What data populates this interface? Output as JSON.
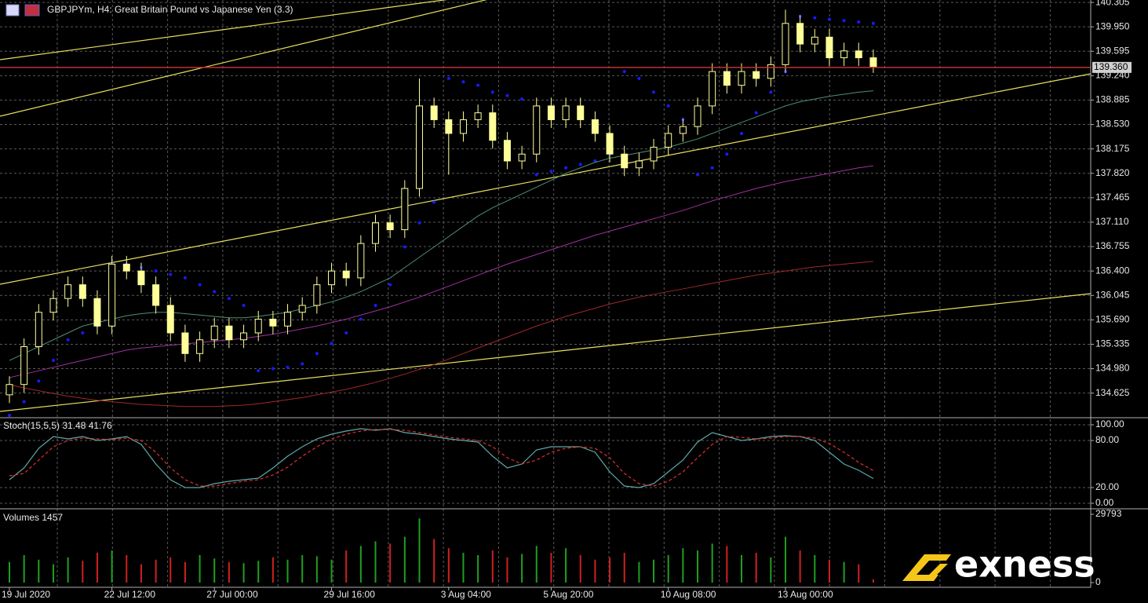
{
  "chart_data": [
    {
      "type": "candlestick",
      "title": "GBPJPYm, H4:  Great Britain Pound vs Japanese Yen (3.3)",
      "categories": [
        "19 Jul 2020",
        null,
        null,
        null,
        null,
        null,
        null,
        "22 Jul 12:00",
        null,
        null,
        null,
        null,
        null,
        null,
        "27 Jul 00:00",
        null,
        null,
        null,
        null,
        null,
        null,
        null,
        "29 Jul 16:00",
        null,
        null,
        null,
        null,
        null,
        null,
        null,
        "3 Aug 04:00",
        null,
        null,
        null,
        null,
        null,
        null,
        "5 Aug 20:00",
        null,
        null,
        null,
        null,
        null,
        null,
        null,
        "10 Aug 08:00",
        null,
        null,
        null,
        null,
        null,
        null,
        null,
        "13 Aug 00:00",
        null,
        null,
        null,
        null,
        null,
        null
      ],
      "open": [
        134.6,
        134.75,
        135.3,
        135.8,
        136.0,
        136.2,
        136.0,
        135.6,
        136.5,
        136.4,
        136.2,
        135.9,
        135.5,
        135.2,
        135.4,
        135.6,
        135.4,
        135.5,
        135.7,
        135.6,
        135.8,
        135.9,
        136.2,
        136.4,
        136.3,
        136.8,
        137.1,
        137.0,
        137.6,
        138.8,
        138.6,
        138.4,
        138.6,
        138.7,
        138.3,
        138.0,
        138.1,
        138.8,
        138.6,
        138.8,
        138.6,
        138.4,
        138.1,
        137.9,
        138.0,
        138.2,
        138.4,
        138.5,
        138.8,
        139.3,
        139.1,
        139.3,
        139.2,
        139.4,
        140.0,
        139.7,
        139.8,
        139.5,
        139.6,
        139.5
      ],
      "high": [
        134.87,
        135.42,
        135.92,
        136.12,
        136.32,
        136.32,
        136.12,
        136.62,
        136.62,
        136.52,
        136.32,
        136.02,
        135.62,
        135.52,
        135.72,
        135.72,
        135.62,
        135.82,
        135.82,
        135.92,
        136.02,
        136.32,
        136.52,
        136.52,
        136.92,
        137.22,
        137.22,
        137.72,
        139.2,
        138.92,
        138.72,
        138.72,
        138.82,
        138.82,
        138.42,
        138.22,
        138.92,
        138.92,
        138.92,
        138.92,
        138.72,
        138.52,
        138.22,
        138.12,
        138.32,
        138.52,
        138.62,
        138.92,
        139.42,
        139.42,
        139.42,
        139.42,
        139.52,
        140.2,
        140.12,
        139.92,
        139.92,
        139.72,
        139.72,
        139.62
      ],
      "low": [
        134.48,
        134.63,
        135.18,
        135.68,
        135.88,
        135.88,
        135.48,
        135.48,
        136.28,
        136.08,
        135.78,
        135.38,
        135.08,
        135.08,
        135.28,
        135.28,
        135.28,
        135.38,
        135.48,
        135.48,
        135.68,
        135.78,
        136.08,
        136.18,
        136.18,
        136.68,
        136.88,
        136.88,
        137.48,
        138.48,
        137.8,
        138.28,
        138.48,
        138.18,
        137.88,
        137.88,
        137.98,
        138.48,
        138.48,
        138.48,
        138.28,
        137.98,
        137.78,
        137.78,
        137.88,
        138.08,
        138.28,
        138.38,
        138.68,
        138.98,
        138.98,
        139.08,
        139.08,
        139.28,
        139.58,
        139.58,
        139.38,
        139.38,
        139.38,
        139.28
      ],
      "close": [
        134.75,
        135.3,
        135.8,
        136.0,
        136.2,
        136.0,
        135.6,
        136.5,
        136.4,
        136.2,
        135.9,
        135.5,
        135.2,
        135.4,
        135.6,
        135.4,
        135.5,
        135.7,
        135.6,
        135.8,
        135.9,
        136.2,
        136.4,
        136.3,
        136.8,
        137.1,
        137.0,
        137.6,
        138.8,
        138.6,
        138.4,
        138.6,
        138.7,
        138.3,
        138.0,
        138.1,
        138.8,
        138.6,
        138.8,
        138.6,
        138.4,
        138.1,
        137.9,
        138.0,
        138.2,
        138.4,
        138.5,
        138.8,
        139.3,
        139.1,
        139.3,
        139.2,
        139.4,
        140.0,
        139.7,
        139.8,
        139.5,
        139.6,
        139.5,
        139.36
      ],
      "up_color": "#000000",
      "down_color": "#ffff99",
      "wick_color": "#ffff99",
      "overlays": [
        {
          "style": "dots",
          "color": "#1a1aff",
          "values": [
            134.3,
            134.5,
            134.8,
            135.1,
            135.4,
            135.5,
            135.6,
            136.5,
            136.5,
            136.45,
            136.4,
            136.35,
            136.3,
            136.2,
            136.1,
            136.0,
            135.9,
            134.95,
            134.98,
            135.0,
            135.05,
            135.2,
            135.35,
            135.5,
            135.7,
            135.9,
            136.2,
            136.75,
            137.1,
            137.4,
            139.2,
            139.15,
            139.1,
            139.0,
            138.95,
            138.9,
            137.8,
            137.85,
            137.9,
            137.95,
            138.0,
            138.1,
            139.3,
            139.2,
            139.0,
            138.8,
            138.6,
            137.8,
            137.9,
            138.1,
            138.4,
            138.7,
            139.0,
            139.3,
            140.1,
            140.08,
            140.06,
            140.04,
            140.02,
            140.0
          ]
        },
        {
          "style": "line",
          "color": "#a02828",
          "values": [
            134.75,
            134.7,
            134.66,
            134.62,
            134.58,
            134.55,
            134.52,
            134.5,
            134.48,
            134.46,
            134.45,
            134.44,
            134.43,
            134.43,
            134.43,
            134.44,
            134.45,
            134.47,
            134.5,
            134.53,
            134.56,
            134.6,
            134.64,
            134.68,
            134.73,
            134.78,
            134.84,
            134.9,
            134.97,
            135.04,
            135.12,
            135.2,
            135.28,
            135.36,
            135.44,
            135.52,
            135.6,
            135.67,
            135.74,
            135.8,
            135.86,
            135.92,
            135.97,
            136.02,
            136.06,
            136.1,
            136.14,
            136.18,
            136.22,
            136.26,
            136.3,
            136.34,
            136.37,
            136.4,
            136.43,
            136.46,
            136.48,
            136.5,
            136.52,
            136.54
          ]
        },
        {
          "style": "line",
          "color": "#a030a0",
          "values": [
            134.85,
            134.9,
            134.95,
            135.0,
            135.05,
            135.1,
            135.15,
            135.2,
            135.25,
            135.28,
            135.3,
            135.32,
            135.34,
            135.36,
            135.38,
            135.4,
            135.42,
            135.45,
            135.48,
            135.52,
            135.56,
            135.6,
            135.65,
            135.7,
            135.76,
            135.82,
            135.88,
            135.95,
            136.02,
            136.1,
            136.18,
            136.26,
            136.34,
            136.42,
            136.5,
            136.57,
            136.64,
            136.71,
            136.78,
            136.85,
            136.92,
            136.98,
            137.04,
            137.1,
            137.16,
            137.22,
            137.28,
            137.35,
            137.42,
            137.48,
            137.54,
            137.6,
            137.65,
            137.7,
            137.74,
            137.78,
            137.82,
            137.86,
            137.9,
            137.93
          ]
        },
        {
          "style": "line",
          "color": "#4f8f6f",
          "values": [
            135.1,
            135.2,
            135.3,
            135.4,
            135.5,
            135.6,
            135.65,
            135.7,
            135.75,
            135.78,
            135.8,
            135.8,
            135.78,
            135.76,
            135.74,
            135.72,
            135.72,
            135.74,
            135.77,
            135.8,
            135.85,
            135.9,
            135.95,
            136.02,
            136.1,
            136.2,
            136.3,
            136.45,
            136.6,
            136.75,
            136.9,
            137.05,
            137.2,
            137.32,
            137.42,
            137.52,
            137.62,
            137.72,
            137.82,
            137.9,
            137.98,
            138.04,
            138.08,
            138.12,
            138.16,
            138.2,
            138.26,
            138.32,
            138.4,
            138.48,
            138.56,
            138.64,
            138.72,
            138.8,
            138.86,
            138.9,
            138.94,
            138.97,
            139.0,
            139.02
          ]
        }
      ],
      "price_line": {
        "value": 139.36,
        "label": "139.360",
        "color": "#c03030"
      },
      "ylim": [
        134.29,
        140.34
      ],
      "yticks": [
        140.305,
        {
          "value": 139.95,
          "label": "139.950"
        },
        139.595,
        {
          "value": 139.24,
          "label": "139.240"
        },
        138.885,
        {
          "value": 138.53,
          "label": "138.530"
        },
        138.175,
        {
          "value": 137.82,
          "label": "137.820"
        },
        137.465,
        {
          "value": 137.11,
          "label": "137.110"
        },
        136.755,
        {
          "value": 136.4,
          "label": "136.400"
        },
        136.045,
        {
          "value": 135.69,
          "label": "135.690"
        },
        135.335,
        {
          "value": 134.98,
          "label": "134.980"
        },
        134.625
      ],
      "grid": true
    },
    {
      "type": "line",
      "title": "Stoch(15,5,5) 31.48 41.76",
      "series": [
        {
          "color": "#5fa8a8",
          "dashed": false,
          "values": [
            30,
            45,
            70,
            85,
            82,
            85,
            80,
            82,
            85,
            75,
            50,
            30,
            20,
            20,
            25,
            28,
            30,
            32,
            45,
            60,
            72,
            82,
            88,
            92,
            95,
            93,
            95,
            90,
            88,
            85,
            82,
            80,
            78,
            60,
            45,
            50,
            68,
            72,
            72,
            72,
            65,
            40,
            22,
            20,
            25,
            40,
            55,
            78,
            90,
            85,
            80,
            82,
            85,
            86,
            85,
            80,
            65,
            50,
            42,
            31.48
          ]
        },
        {
          "color": "#e03030",
          "dashed": true,
          "values": [
            35,
            38,
            55,
            72,
            80,
            83,
            82,
            81,
            83,
            80,
            65,
            45,
            30,
            22,
            22,
            25,
            28,
            30,
            36,
            46,
            60,
            72,
            82,
            88,
            92,
            94,
            94,
            93,
            90,
            87,
            84,
            82,
            80,
            72,
            58,
            50,
            55,
            65,
            70,
            72,
            70,
            58,
            38,
            25,
            22,
            28,
            40,
            58,
            75,
            85,
            84,
            82,
            83,
            85,
            85,
            83,
            76,
            65,
            52,
            41.76
          ]
        }
      ],
      "ylim": [
        -6,
        107
      ],
      "yticks": [
        {
          "value": 100,
          "label": "100.00"
        },
        {
          "value": 80,
          "label": "80.00"
        },
        {
          "value": 20,
          "label": "20.00"
        },
        {
          "value": 0,
          "label": "0.00"
        }
      ],
      "grid": true
    },
    {
      "type": "bar",
      "title": "Volumes 1457",
      "values": [
        9000,
        12000,
        10000,
        8000,
        11000,
        9500,
        13000,
        14000,
        12000,
        8000,
        10000,
        11000,
        9000,
        12000,
        10500,
        9000,
        8500,
        9500,
        11000,
        10000,
        12000,
        11500,
        10000,
        14000,
        16000,
        18000,
        17000,
        20000,
        28000,
        19000,
        15000,
        13000,
        12000,
        14000,
        11000,
        12500,
        16000,
        13000,
        15000,
        12000,
        10000,
        11000,
        13000,
        9000,
        10000,
        12000,
        15000,
        14000,
        17000,
        16000,
        12000,
        13000,
        11000,
        20000,
        14000,
        12000,
        10000,
        9000,
        8000,
        1457
      ],
      "up_color": "#1f9f1f",
      "down_color": "#d02020",
      "ylim": [
        -2055,
        31505
      ],
      "yticks": [
        29793,
        0
      ],
      "grid": false
    }
  ],
  "logo": "exness"
}
